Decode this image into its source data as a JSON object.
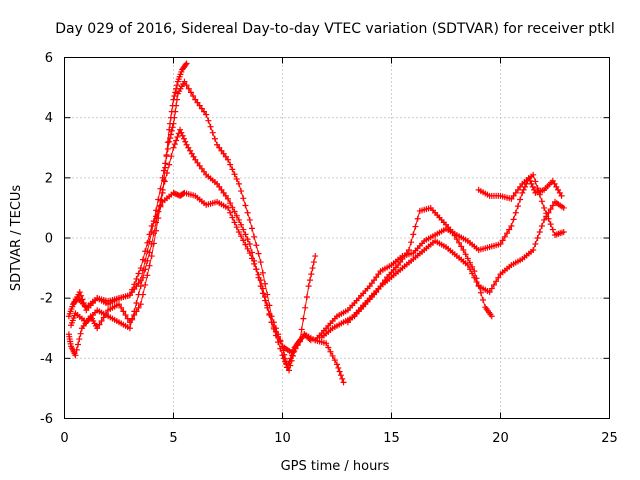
{
  "chart_data": {
    "type": "scatter",
    "title": "Day 029 of 2016, Sidereal Day-to-day VTEC variation (SDTVAR) for receiver ptkl",
    "xlabel": "GPS time / hours",
    "ylabel": "SDTVAR / TECUs",
    "xlim": [
      0,
      25
    ],
    "ylim": [
      -6,
      6
    ],
    "x_ticks": [
      "0",
      "5",
      "10",
      "15",
      "20",
      "25"
    ],
    "y_ticks": [
      "-6",
      "-4",
      "-2",
      "0",
      "2",
      "4",
      "6"
    ],
    "grid": true,
    "legend": "none",
    "marker": "plus",
    "color": "#ff0000",
    "series": [
      {
        "x": [
          0.2,
          0.4,
          0.6,
          1.0,
          1.5,
          2.0,
          2.5,
          3.0,
          3.5,
          4.0,
          4.5,
          5.0,
          5.3,
          5.5,
          6.0,
          6.5,
          7.0,
          7.5,
          8.0,
          8.5,
          9.0,
          9.5,
          10.0,
          10.2,
          10.5,
          11.0,
          11.5,
          12.0,
          12.5,
          12.8
        ],
        "y": [
          -2.6,
          -2.2,
          -2.0,
          -2.3,
          -2.0,
          -2.1,
          -2.0,
          -1.9,
          -1.0,
          0.4,
          1.2,
          1.5,
          1.4,
          1.5,
          1.4,
          1.1,
          1.2,
          1.0,
          0.2,
          -0.5,
          -1.4,
          -2.8,
          -3.6,
          -4.3,
          -3.8,
          -3.2,
          -3.4,
          -3.5,
          -4.2,
          -4.8
        ]
      },
      {
        "x": [
          0.3,
          0.5,
          1.0,
          1.5,
          2.0,
          2.5,
          3.0,
          3.5,
          4.0,
          4.5,
          5.0,
          5.3,
          5.6,
          6.0,
          6.5,
          7.0,
          7.5,
          8.0,
          8.5,
          9.0,
          9.5,
          10.0,
          10.3,
          10.6,
          11.0,
          11.3
        ],
        "y": [
          -2.9,
          -2.5,
          -2.8,
          -2.4,
          -2.6,
          -2.8,
          -3.0,
          -1.6,
          -0.2,
          1.6,
          3.0,
          3.6,
          3.1,
          2.6,
          2.1,
          1.8,
          1.3,
          0.6,
          -0.2,
          -1.6,
          -2.8,
          -3.9,
          -4.4,
          -3.6,
          -3.2,
          -3.4
        ]
      },
      {
        "x": [
          0.4,
          0.7,
          1.0,
          1.5,
          2.0,
          2.5,
          3.0,
          3.5,
          4.0,
          4.5,
          4.8,
          5.0,
          5.2,
          5.5,
          6.0,
          6.5,
          7.0,
          7.5,
          8.0,
          8.5,
          9.0,
          9.5,
          10.0,
          10.4,
          10.8,
          11.2,
          11.5
        ],
        "y": [
          -2.2,
          -1.8,
          -2.4,
          -2.0,
          -2.2,
          -2.0,
          -1.9,
          -1.4,
          0.2,
          2.0,
          3.2,
          3.8,
          4.8,
          5.2,
          4.6,
          4.1,
          3.1,
          2.6,
          1.8,
          0.6,
          -0.8,
          -2.6,
          -3.6,
          -3.8,
          -3.4,
          -1.6,
          -0.6
        ]
      },
      {
        "x": [
          0.2,
          0.3,
          0.5,
          0.8,
          1.2,
          1.5,
          2.0,
          2.5,
          3.0,
          3.5,
          4.0,
          4.5,
          4.8,
          5.0,
          5.2,
          5.4,
          5.6
        ],
        "y": [
          -3.2,
          -3.6,
          -3.9,
          -3.0,
          -2.6,
          -3.0,
          -2.4,
          -2.2,
          -2.8,
          -2.2,
          -0.6,
          1.5,
          3.6,
          4.6,
          5.2,
          5.6,
          5.8
        ]
      },
      {
        "x": [
          11.5,
          12.0,
          12.5,
          13.0,
          13.5,
          14.0,
          14.5,
          15.0,
          15.5,
          16.0,
          16.5,
          17.0,
          17.5,
          18.0,
          18.5,
          19.0,
          19.5,
          20.0,
          20.5,
          21.0,
          21.3,
          21.6,
          22.0,
          22.4,
          22.8
        ],
        "y": [
          -3.4,
          -3.0,
          -2.6,
          -2.4,
          -2.0,
          -1.6,
          -1.1,
          -0.9,
          -0.6,
          -0.5,
          -0.1,
          0.1,
          0.3,
          0.1,
          -0.1,
          -0.4,
          -0.3,
          -0.2,
          0.4,
          1.5,
          2.0,
          1.5,
          1.6,
          1.9,
          1.4
        ]
      },
      {
        "x": [
          11.8,
          12.3,
          12.8,
          13.3,
          13.8,
          14.3,
          14.8,
          15.3,
          15.8,
          16.3,
          16.8,
          17.3,
          17.8,
          18.3,
          18.8,
          19.3,
          19.6
        ],
        "y": [
          -3.3,
          -3.0,
          -2.8,
          -2.6,
          -2.2,
          -1.8,
          -1.3,
          -0.9,
          -0.4,
          0.9,
          1.0,
          0.6,
          0.2,
          -0.4,
          -1.1,
          -2.3,
          -2.6
        ]
      },
      {
        "x": [
          13.0,
          13.5,
          14.0,
          14.5,
          15.0,
          15.5,
          16.0,
          16.5,
          17.0,
          17.5,
          18.0,
          18.5,
          19.0,
          19.5,
          20.0,
          20.5,
          21.0,
          21.5,
          22.0,
          22.5,
          22.9
        ],
        "y": [
          -2.8,
          -2.4,
          -2.0,
          -1.6,
          -1.3,
          -1.0,
          -0.7,
          -0.4,
          -0.1,
          -0.3,
          -0.6,
          -0.9,
          -1.6,
          -1.8,
          -1.2,
          -0.9,
          -0.7,
          -0.4,
          0.6,
          1.2,
          1.0
        ]
      },
      {
        "x": [
          19.0,
          19.5,
          20.0,
          20.5,
          21.0,
          21.5,
          22.0,
          22.5,
          22.9
        ],
        "y": [
          1.6,
          1.4,
          1.4,
          1.3,
          1.8,
          2.1,
          1.0,
          0.1,
          0.2
        ]
      }
    ]
  }
}
